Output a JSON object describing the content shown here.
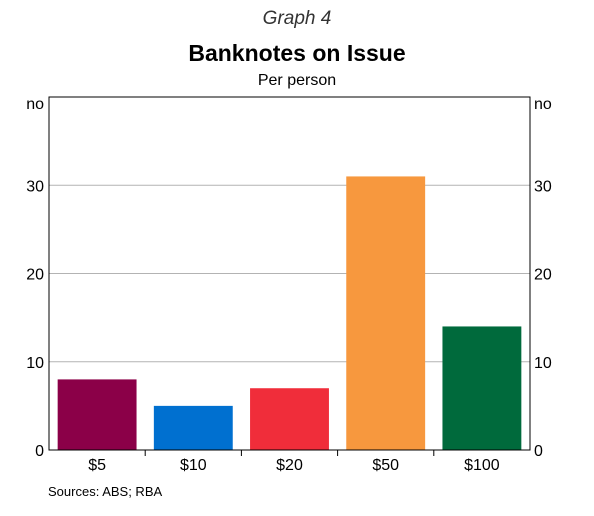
{
  "header": {
    "graph_label": "Graph 4",
    "title": "Banknotes on Issue",
    "subtitle": "Per person"
  },
  "footer": {
    "sources": "Sources:   ABS; RBA"
  },
  "chart_data": {
    "type": "bar",
    "title": "Banknotes on Issue",
    "subtitle": "Per person",
    "categories": [
      "$5",
      "$10",
      "$20",
      "$50",
      "$100"
    ],
    "values": [
      8,
      5,
      7,
      31,
      14
    ],
    "colors": [
      "#8B0048",
      "#0070D0",
      "#F02D3A",
      "#F7983E",
      "#006A3C"
    ],
    "ylabel": "no",
    "ylim": [
      0,
      40
    ],
    "yticks": [
      0,
      10,
      20,
      30
    ],
    "y_unit_label_left": "no",
    "y_unit_label_right": "no",
    "grid": true,
    "legend": "none"
  }
}
